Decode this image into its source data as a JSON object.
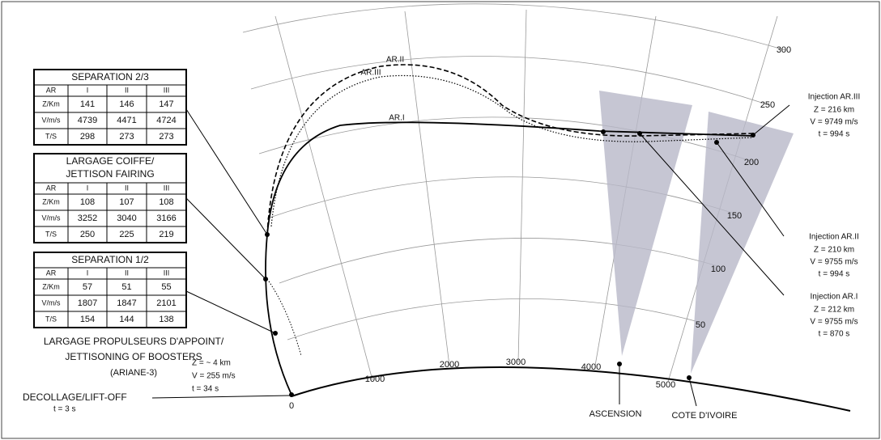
{
  "tables": [
    {
      "title": [
        "SEPARATION 2/3"
      ],
      "header": [
        "AR",
        "I",
        "II",
        "III"
      ],
      "rows": [
        [
          "Z/Km",
          141,
          146,
          147
        ],
        [
          "V/m/s",
          4739,
          4471,
          4724
        ],
        [
          "T/S",
          298,
          273,
          273
        ]
      ]
    },
    {
      "title": [
        "LARGAGE COIFFE/",
        "JETTISON FAIRING"
      ],
      "header": [
        "AR",
        "I",
        "II",
        "III"
      ],
      "rows": [
        [
          "Z/Km",
          108,
          107,
          108
        ],
        [
          "V/m/s",
          3252,
          3040,
          3166
        ],
        [
          "T/S",
          250,
          225,
          219
        ]
      ]
    },
    {
      "title": [
        "SEPARATION 1/2"
      ],
      "header": [
        "AR",
        "I",
        "II",
        "III"
      ],
      "rows": [
        [
          "Z/Km",
          57,
          51,
          55
        ],
        [
          "V/m/s",
          1807,
          1847,
          2101
        ],
        [
          "T/S",
          154,
          144,
          138
        ]
      ]
    }
  ],
  "range_labels": [
    "0",
    "1000",
    "2000",
    "3000",
    "4000",
    "5000"
  ],
  "altitude_labels": [
    "50",
    "100",
    "150",
    "200",
    "250",
    "300"
  ],
  "trajectory_labels": [
    "AR.I",
    "AR.II",
    "AR.III"
  ],
  "injections": [
    {
      "title": "Injection AR.III",
      "lines": [
        "Z = 216 km",
        "V = 9749 m/s",
        "t = 994 s"
      ]
    },
    {
      "title": "Injection AR.II",
      "lines": [
        "Z = 210 km",
        "V = 9755 m/s",
        "t = 994 s"
      ]
    },
    {
      "title": "Injection AR.I",
      "lines": [
        "Z = 212 km",
        "V = 9755 m/s",
        "t = 870 s"
      ]
    }
  ],
  "boosters": {
    "label": [
      "LARGAGE PROPULSEURS D'APPOINT/",
      "JETTISONING OF BOOSTERS",
      "(ARIANE-3)"
    ],
    "lines": [
      "Z = ~ 4 km",
      "V = 255 m/s",
      "t = 34 s"
    ]
  },
  "liftoff": {
    "label": "DECOLLAGE/LIFT-OFF",
    "time": "t = 3 s"
  },
  "stations": [
    "ASCENSION",
    "COTE D'IVOIRE"
  ]
}
